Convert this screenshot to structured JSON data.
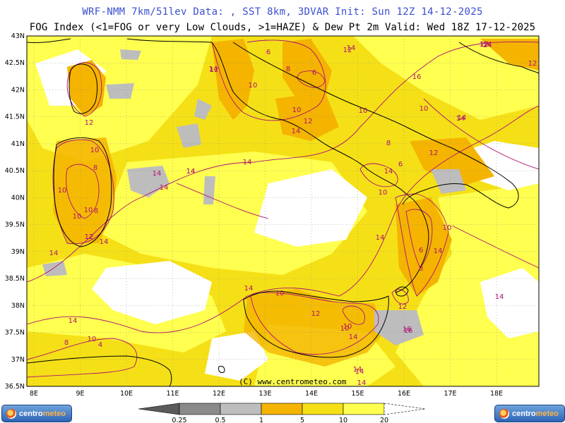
{
  "header": {
    "line1": "WRF-NMM 7km/51lev  Data: , SST 8km, 3DVAR  Init: Sun 12Z 14-12-2025",
    "line2": "FOG Index (<1=FOG or very Low Clouds, >1=HAZE) & Dew Pt 2m  Valid: Wed 18Z 17-12-2025"
  },
  "axes": {
    "lat_labels": [
      "43N",
      "42.5N",
      "42N",
      "41.5N",
      "41N",
      "40.5N",
      "40N",
      "39.5N",
      "39N",
      "38.5N",
      "38N",
      "37.5N",
      "37N",
      "36.5N"
    ],
    "lon_labels": [
      "8E",
      "9E",
      "10E",
      "11E",
      "12E",
      "13E",
      "14E",
      "15E",
      "16E",
      "17E",
      "18E"
    ]
  },
  "credit": "(C) www.centrometeo.com",
  "legend": {
    "ticks": [
      "0.25",
      "0.5",
      "1",
      "5",
      "10",
      "20"
    ],
    "colors": [
      "#5a5a5a",
      "#8a8a8a",
      "#bdbdbd",
      "#f4b400",
      "#f5e017",
      "#ffff50",
      "#ffffff"
    ]
  },
  "logos": {
    "left": {
      "part1": "centro",
      "part2": "meteo"
    },
    "right": {
      "part1": "centro",
      "part2": "meteo"
    }
  },
  "contour_labels": [
    "12",
    "14",
    "6",
    "10",
    "14",
    "12",
    "12",
    "6",
    "10",
    "8",
    "14",
    "10",
    "12",
    "14",
    "14",
    "10",
    "10",
    "8",
    "10",
    "14",
    "12",
    "14",
    "12",
    "6",
    "8",
    "10",
    "14",
    "14",
    "14",
    "14",
    "8",
    "10",
    "10",
    "12",
    "10",
    "14",
    "10",
    "6",
    "8",
    "14",
    "14",
    "14",
    "14",
    "10",
    "16",
    "12",
    "16",
    "12",
    "14",
    "10",
    "12",
    "14",
    "14",
    "12",
    "14",
    "8",
    "4",
    "10",
    "12",
    "14",
    "14",
    "14",
    "16",
    "14"
  ],
  "colors": {
    "title_blue": "#3a4fd0",
    "contour": "#b01070",
    "coastline": "#000000",
    "yellow": "#ffff50",
    "gold": "#f5e017",
    "orange": "#f4b400",
    "gray": "#bdbdbd"
  }
}
